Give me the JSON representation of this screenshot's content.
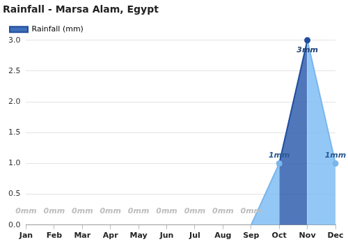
{
  "chart_data": {
    "type": "area",
    "title": "Rainfall - Marsa Alam, Egypt",
    "categories": [
      "Jan",
      "Feb",
      "Mar",
      "Apr",
      "May",
      "Jun",
      "Jul",
      "Aug",
      "Sep",
      "Oct",
      "Nov",
      "Dec"
    ],
    "series": [
      {
        "name": "Rainfall (mm)",
        "color": "#1f4e9c",
        "values": [
          0,
          0,
          0,
          0,
          0,
          0,
          0,
          0,
          0,
          1,
          3,
          1
        ],
        "value_labels": [
          "0mm",
          "0mm",
          "0mm",
          "0mm",
          "0mm",
          "0mm",
          "0mm",
          "0mm",
          "0mm",
          "1mm",
          "3mm",
          "1mm"
        ]
      }
    ],
    "ylim": [
      0,
      3
    ],
    "yticks": [
      {
        "value": 0,
        "label": "0.0"
      },
      0.5,
      {
        "value": 1,
        "label": "1.0"
      },
      1.5,
      {
        "value": 2,
        "label": "2.0"
      },
      2.5,
      {
        "value": 3,
        "label": "3.0"
      }
    ],
    "grid": true,
    "legend": "top-left",
    "data_labels": true
  }
}
